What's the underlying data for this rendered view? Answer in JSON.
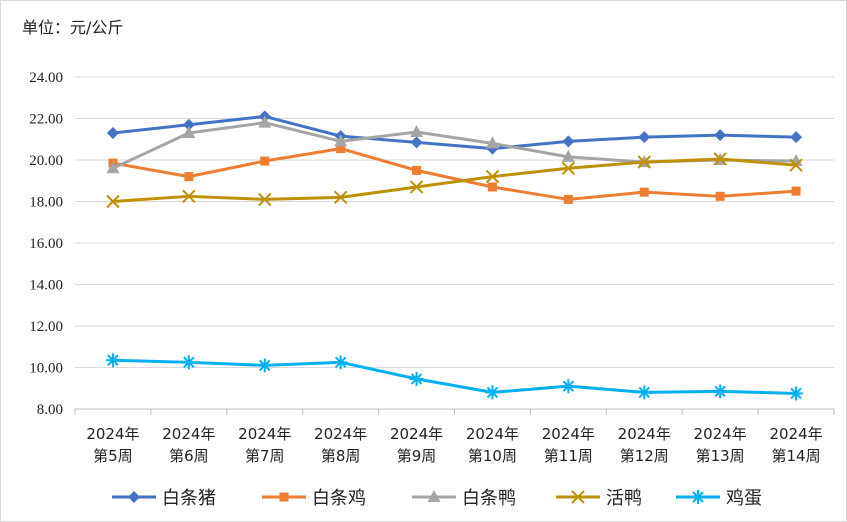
{
  "chart_data": {
    "type": "line",
    "unit_label": "单位：元/公斤",
    "categories": [
      [
        "2024年",
        "第5周"
      ],
      [
        "2024年",
        "第6周"
      ],
      [
        "2024年",
        "第7周"
      ],
      [
        "2024年",
        "第8周"
      ],
      [
        "2024年",
        "第9周"
      ],
      [
        "2024年",
        "第10周"
      ],
      [
        "2024年",
        "第11周"
      ],
      [
        "2024年",
        "第12周"
      ],
      [
        "2024年",
        "第13周"
      ],
      [
        "2024年",
        "第14周"
      ]
    ],
    "ylim": [
      8,
      24
    ],
    "yticks": [
      "8.00",
      "10.00",
      "12.00",
      "14.00",
      "16.00",
      "18.00",
      "20.00",
      "22.00",
      "24.00"
    ],
    "grid": true,
    "legend_position": "bottom",
    "series": [
      {
        "name": "白条猪",
        "color": "#4472C4",
        "marker": "diamond",
        "values": [
          21.3,
          21.7,
          22.1,
          21.15,
          20.85,
          20.55,
          20.9,
          21.1,
          21.2,
          21.1
        ]
      },
      {
        "name": "白条鸡",
        "color": "#ED7D31",
        "marker": "square",
        "values": [
          19.85,
          19.2,
          19.95,
          20.55,
          19.5,
          18.7,
          18.1,
          18.45,
          18.25,
          18.5
        ]
      },
      {
        "name": "白条鸭",
        "color": "#A5A5A5",
        "marker": "triangle",
        "values": [
          19.6,
          21.3,
          21.8,
          20.9,
          21.35,
          20.8,
          20.15,
          19.9,
          20.0,
          19.95
        ]
      },
      {
        "name": "活鸭",
        "color": "#BF9000",
        "marker": "x",
        "values": [
          18.0,
          18.25,
          18.1,
          18.2,
          18.7,
          19.2,
          19.6,
          19.9,
          20.05,
          19.75
        ]
      },
      {
        "name": "鸡蛋",
        "color": "#00B0F0",
        "marker": "asterisk",
        "values": [
          10.35,
          10.25,
          10.1,
          10.25,
          9.45,
          8.8,
          9.1,
          8.8,
          8.85,
          8.75
        ]
      }
    ]
  }
}
